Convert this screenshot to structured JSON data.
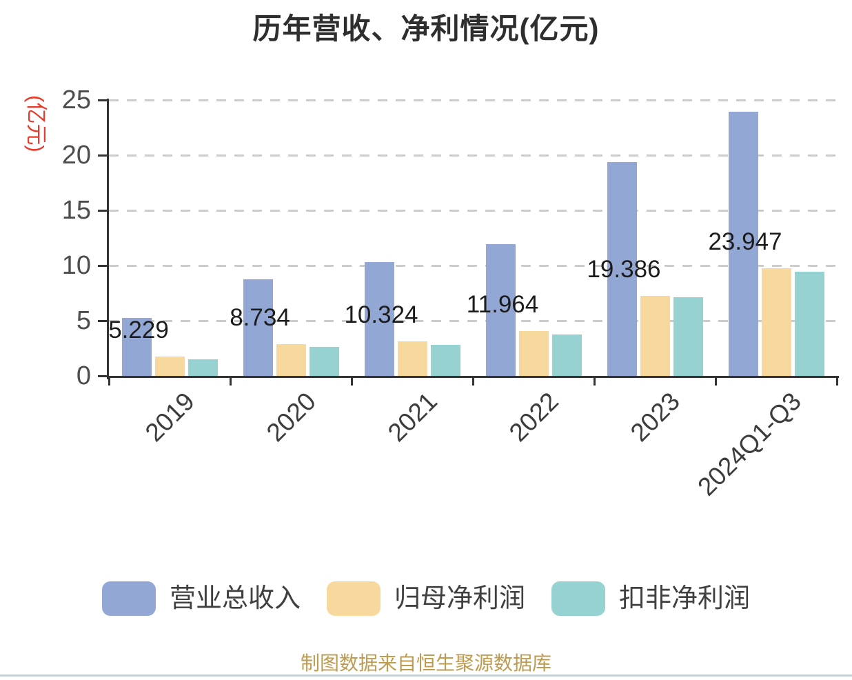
{
  "chart_data": {
    "type": "bar",
    "title": "历年营收、净利情况(亿元)",
    "ylabel": "(亿元)",
    "categories": [
      "2019",
      "2020",
      "2021",
      "2022",
      "2023",
      "2024Q1-Q3"
    ],
    "series": [
      {
        "name": "营业总收入",
        "color": "#93a7d4",
        "values": [
          5.229,
          8.734,
          10.324,
          11.964,
          19.386,
          23.947
        ],
        "value_labels": [
          "5.229",
          "8.734",
          "10.324",
          "11.964",
          "19.386",
          "23.947"
        ]
      },
      {
        "name": "归母净利润",
        "color": "#f8d99d",
        "values": [
          1.72,
          2.86,
          3.11,
          4.05,
          7.23,
          9.75
        ]
      },
      {
        "name": "扣非净利润",
        "color": "#97d2d2",
        "values": [
          1.5,
          2.63,
          2.83,
          3.72,
          7.15,
          9.45
        ]
      }
    ],
    "yticks": [
      0,
      5,
      10,
      15,
      20,
      25
    ],
    "ylim": [
      0,
      25
    ],
    "grid": "horizontal dashed",
    "legend_position": "bottom"
  },
  "footer": {
    "source_text": "制图数据来自恒生聚源数据库"
  },
  "colors": {
    "title_text": "#2e2e2e",
    "axis_line": "#333333",
    "grid_line": "#cccccc",
    "tick_text": "#4d4d4f",
    "y_unit_text": "#e83b2a",
    "bar_label_text": "#1c1c1c",
    "legend_text": "#404040",
    "source_text": "#bf9b50",
    "divider": "#c9d1d8"
  }
}
